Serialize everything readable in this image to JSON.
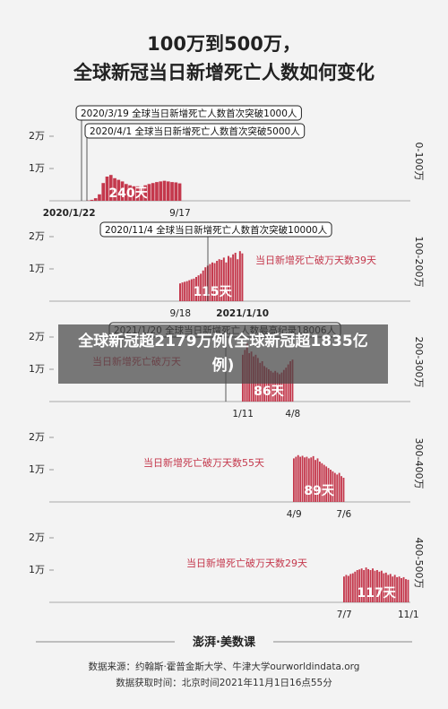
{
  "title": [
    "100万到500万，",
    "全球新冠当日新增死亡人数如何变化"
  ],
  "overlay": "全球新冠超2179万例(全球新冠超1835亿例)",
  "chart_data": [
    {
      "type": "bar",
      "color": "#c4384c",
      "ylim": [
        0,
        25000
      ],
      "yticks": [
        {
          "value": 10000,
          "label": "1万"
        },
        {
          "value": 20000,
          "label": "2万"
        }
      ],
      "range_label": "0-100万",
      "duration_label": "240天",
      "callouts": [
        "2020/3/19  全球当日新增死亡人数首次突破1000人",
        "2020/4/1  全球当日新增死亡人数首次突破5000人"
      ],
      "categories": [
        "2020/1/22",
        null,
        null,
        null,
        null,
        null,
        null,
        null,
        null,
        null,
        null,
        null,
        null,
        null,
        null,
        null,
        null,
        null,
        null,
        null,
        null,
        null,
        null,
        null,
        null,
        null,
        null,
        null,
        null,
        "9/17"
      ],
      "values": [
        0,
        0,
        0,
        0,
        0,
        100,
        300,
        800,
        2000,
        5500,
        7500,
        8000,
        7000,
        6500,
        6000,
        5200,
        4800,
        4500,
        4500,
        4300,
        4800,
        5200,
        5500,
        5800,
        6000,
        6200,
        6000,
        5800,
        5700,
        5400
      ]
    },
    {
      "type": "bar",
      "color": "#c4384c",
      "ylim": [
        0,
        25000
      ],
      "yticks": [
        {
          "value": 10000,
          "label": "1万"
        },
        {
          "value": 20000,
          "label": "2万"
        }
      ],
      "range_label": "100-200万",
      "duration_label": "115天",
      "note": "当日新增死亡破万天数39天",
      "callouts": [
        "2020/11/4  全球当日新增死亡人数首次突破10000人"
      ],
      "categories": [
        "9/18",
        null,
        null,
        null,
        null,
        null,
        null,
        null,
        null,
        null,
        null,
        null,
        null,
        null,
        null,
        null,
        null,
        null,
        null,
        null,
        null,
        null,
        null,
        null,
        null,
        null,
        null,
        "2021/1/10"
      ],
      "values": [
        5500,
        5800,
        6000,
        6200,
        6500,
        6800,
        7000,
        7500,
        8000,
        8500,
        9500,
        10500,
        11000,
        11500,
        12000,
        11800,
        12500,
        13000,
        12800,
        13500,
        12000,
        14000,
        13500,
        14500,
        15000,
        13000,
        15500,
        14800
      ]
    },
    {
      "type": "bar",
      "color": "#c4384c",
      "ylim": [
        0,
        25000
      ],
      "yticks": [
        {
          "value": 10000,
          "label": "1万"
        },
        {
          "value": 20000,
          "label": "2万"
        }
      ],
      "range_label": "200-300万",
      "duration_label": "86天",
      "note": "当日新增死亡破万天",
      "callouts": [
        "2021/1/20  全球当日新增死亡人数最高纪录18006人"
      ],
      "categories": [
        "1/11",
        null,
        null,
        null,
        null,
        null,
        null,
        null,
        null,
        null,
        null,
        null,
        null,
        null,
        null,
        null,
        null,
        null,
        null,
        null,
        null,
        null,
        null,
        "4/8"
      ],
      "values": [
        14500,
        16000,
        18006,
        15000,
        15500,
        14000,
        14500,
        13500,
        12000,
        12500,
        11000,
        10500,
        10000,
        9500,
        9000,
        9500,
        9000,
        8500,
        9000,
        9800,
        10500,
        11500,
        12500,
        13000
      ]
    },
    {
      "type": "bar",
      "color": "#c4384c",
      "ylim": [
        0,
        25000
      ],
      "yticks": [
        {
          "value": 10000,
          "label": "1万"
        },
        {
          "value": 20000,
          "label": "2万"
        }
      ],
      "range_label": "300-400万",
      "duration_label": "89天",
      "note": "当日新增死亡破万天数55天",
      "categories": [
        "4/9",
        null,
        null,
        null,
        null,
        null,
        null,
        null,
        null,
        null,
        null,
        null,
        null,
        null,
        null,
        null,
        null,
        null,
        null,
        null,
        null,
        null,
        null,
        "7/6"
      ],
      "values": [
        13500,
        14000,
        14500,
        14000,
        14300,
        13800,
        14000,
        13500,
        13800,
        14200,
        13000,
        13500,
        12500,
        12000,
        11500,
        11000,
        10500,
        10000,
        9500,
        9000,
        8500,
        9000,
        8000,
        7500
      ]
    },
    {
      "type": "bar",
      "color": "#c4384c",
      "ylim": [
        0,
        25000
      ],
      "yticks": [
        {
          "value": 10000,
          "label": "1万"
        },
        {
          "value": 20000,
          "label": "2万"
        }
      ],
      "range_label": "400-500万",
      "duration_label": "117天",
      "note": "当日新增死亡破万天数29天",
      "categories": [
        "7/7",
        null,
        null,
        null,
        null,
        null,
        null,
        null,
        null,
        null,
        null,
        null,
        null,
        null,
        null,
        null,
        null,
        null,
        null,
        null,
        null,
        null,
        null,
        null,
        null,
        null,
        null,
        null,
        null,
        "11/1"
      ],
      "values": [
        8000,
        8500,
        8200,
        8800,
        9000,
        9500,
        10000,
        10200,
        10500,
        10000,
        10800,
        10300,
        10000,
        10500,
        9800,
        10000,
        9500,
        9800,
        9000,
        9200,
        8500,
        8800,
        8000,
        8500,
        7800,
        8000,
        7500,
        7800,
        7200,
        7000
      ]
    }
  ],
  "footer": {
    "logo": "澎湃·美数课",
    "source": "数据来源：约翰斯·霍普金斯大学、牛津大学ourworldindata.org",
    "time": "数据获取时间：北京时间2021年11月1日16点55分"
  }
}
